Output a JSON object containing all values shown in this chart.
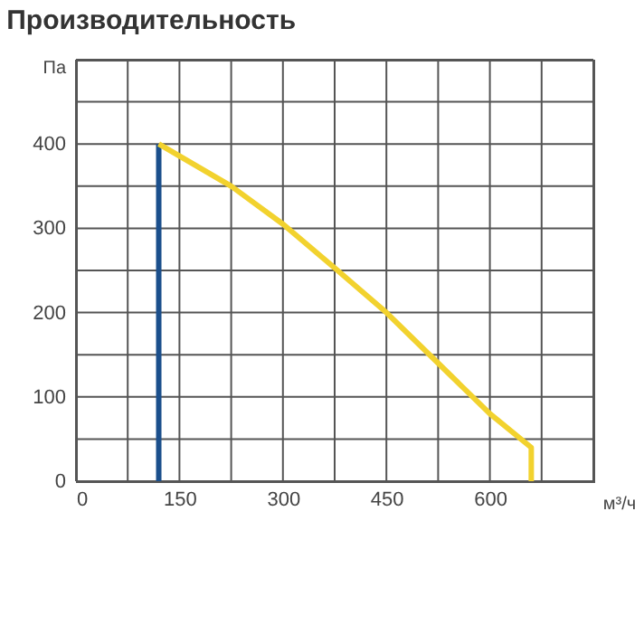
{
  "chart_data": {
    "type": "line",
    "title": "Производительность",
    "xlabel": "м³/ч",
    "ylabel": "Па",
    "xlim": [
      0,
      750
    ],
    "ylim": [
      0,
      500
    ],
    "xticks": [
      0,
      {
        "value": 75,
        "label": null
      },
      150,
      {
        "value": 225,
        "label": null
      },
      300,
      {
        "value": 375,
        "label": null
      },
      450,
      {
        "value": 525,
        "label": null
      },
      600,
      {
        "value": 675,
        "label": null
      },
      {
        "value": 750,
        "label": null
      }
    ],
    "yticks": [
      0,
      {
        "value": 50,
        "label": null
      },
      100,
      {
        "value": 150,
        "label": null
      },
      200,
      {
        "value": 250,
        "label": null
      },
      300,
      {
        "value": 350,
        "label": null
      },
      400,
      {
        "value": 450,
        "label": null
      },
      {
        "value": 500,
        "label": null
      }
    ],
    "grid": true,
    "marker": "none",
    "line_style": "solid",
    "series": [
      {
        "color": "#1b4f8c",
        "x": [
          120,
          120
        ],
        "values": [
          0,
          400
        ]
      },
      {
        "color": "#f2d22e",
        "x": [
          120,
          225,
          300,
          375,
          450,
          525,
          600,
          660,
          660
        ],
        "values": [
          400,
          350,
          305,
          253,
          200,
          140,
          80,
          40,
          0
        ]
      }
    ]
  }
}
